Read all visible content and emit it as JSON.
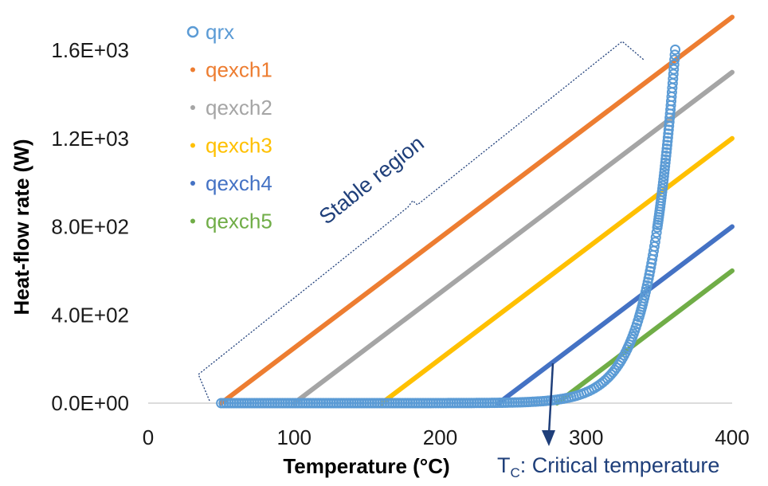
{
  "chart_data": {
    "type": "scatter",
    "title": "",
    "xlabel": "Temperature (°C)",
    "ylabel": "Heat-flow rate (W)",
    "xlim": [
      0,
      400
    ],
    "ylim": [
      0,
      1750
    ],
    "x_ticks": [
      0,
      100,
      200,
      300,
      400
    ],
    "x_tick_labels": [
      "0",
      "100",
      "200",
      "300",
      "400"
    ],
    "y_ticks": [
      0,
      400,
      800,
      1200,
      1600
    ],
    "y_tick_labels": [
      "0.0E+00",
      "4.0E+02",
      "8.0E+02",
      "1.2E+03",
      "1.6E+03"
    ],
    "grid": false,
    "legend_position": "top-left",
    "series": [
      {
        "name": "qrx",
        "kind": "curve-markers",
        "color": "#5b9bd5",
        "formula": "1.6*exp(0.0571*(T-240))",
        "x_range": [
          50,
          361
        ],
        "points": [
          [
            50,
            0
          ],
          [
            150,
            0.01
          ],
          [
            200,
            0.16
          ],
          [
            240,
            1.6
          ],
          [
            260,
            5.0
          ],
          [
            280,
            15.7
          ],
          [
            300,
            49.3
          ],
          [
            320,
            154.6
          ],
          [
            330,
            272.8
          ],
          [
            340,
            485
          ],
          [
            350,
            860
          ],
          [
            355,
            1140
          ],
          [
            361,
            1660
          ]
        ]
      },
      {
        "name": "qexch1",
        "kind": "line",
        "color": "#ed7d31",
        "points": [
          [
            50,
            0
          ],
          [
            400,
            1750
          ]
        ]
      },
      {
        "name": "qexch2",
        "kind": "line",
        "color": "#a5a5a5",
        "points": [
          [
            100,
            0
          ],
          [
            400,
            1500
          ]
        ]
      },
      {
        "name": "qexch3",
        "kind": "line",
        "color": "#ffc000",
        "points": [
          [
            160,
            0
          ],
          [
            400,
            1200
          ]
        ]
      },
      {
        "name": "qexch4",
        "kind": "line",
        "color": "#4472c4",
        "points": [
          [
            240,
            0
          ],
          [
            400,
            800
          ]
        ]
      },
      {
        "name": "qexch5",
        "kind": "line",
        "color": "#70ad47",
        "points": [
          [
            280,
            0
          ],
          [
            400,
            600
          ]
        ]
      }
    ],
    "annotations": {
      "stable_region_label": "Stable region",
      "critical_prefix": "T",
      "critical_sub": "C",
      "critical_rest": ": Critical temperature",
      "critical_temperature_x": 283,
      "annotation_color": "#1f3f7a"
    }
  }
}
